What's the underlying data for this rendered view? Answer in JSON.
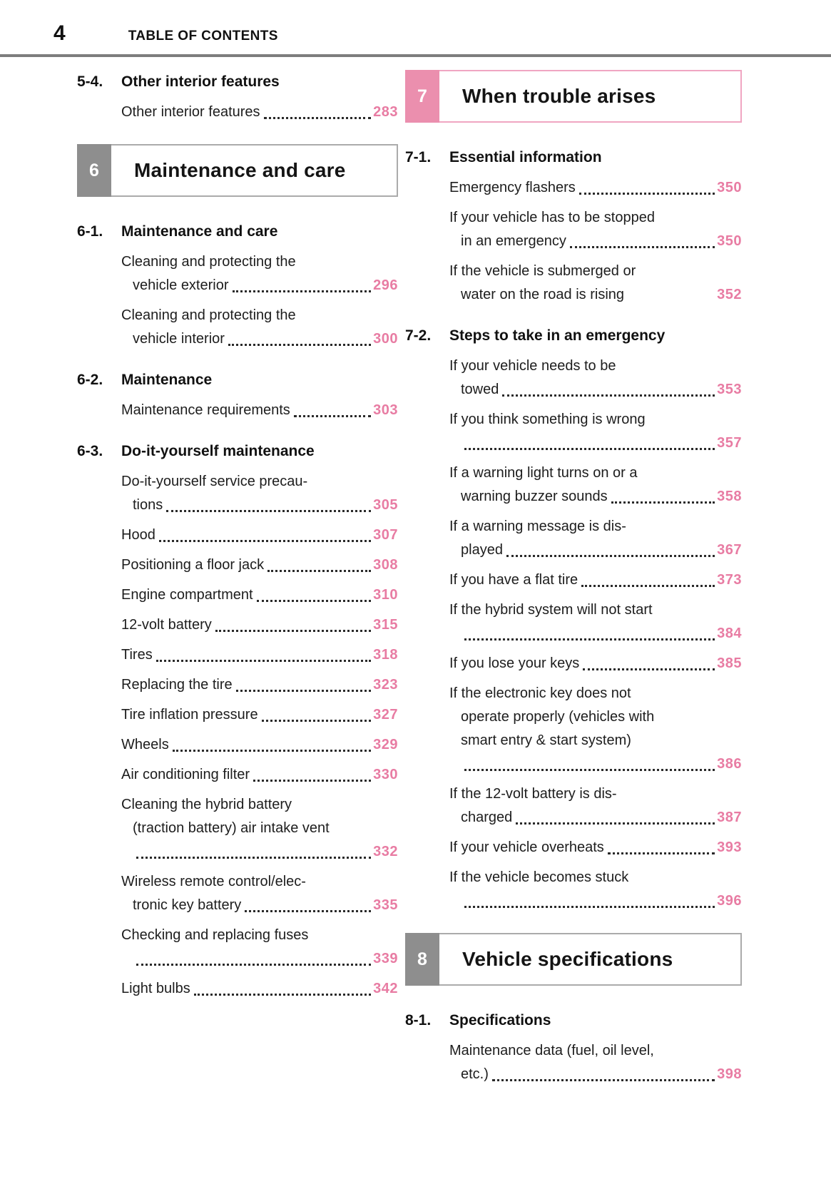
{
  "header": {
    "page_number": "4",
    "title": "TABLE OF CONTENTS"
  },
  "colors": {
    "accent_pink": "#e87ca3",
    "chapter_tab_pink": "#eb8fae",
    "chapter_border_pink": "#f0a6c2",
    "chapter_tab_gray": "#8e8e8e",
    "chapter_border_gray": "#ababab",
    "header_rule_gray": "#7d7d7d",
    "body_text": "#1d1d1d"
  },
  "columns": {
    "left": [
      {
        "type": "section",
        "num": "5-4.",
        "title": "Other interior features",
        "entries": [
          {
            "lines": [
              {
                "t": "Other interior features",
                "leader": true,
                "page": "283"
              }
            ]
          }
        ]
      },
      {
        "type": "chapter",
        "num": "6",
        "title": "Maintenance and care",
        "theme": "gray"
      },
      {
        "type": "section",
        "num": "6-1.",
        "title": "Maintenance and care",
        "entries": [
          {
            "lines": [
              {
                "t": "Cleaning and protecting the"
              },
              {
                "t": "vehicle exterior",
                "cont": true,
                "leader": true,
                "page": "296"
              }
            ]
          },
          {
            "lines": [
              {
                "t": "Cleaning and protecting the"
              },
              {
                "t": "vehicle interior",
                "cont": true,
                "leader": true,
                "page": "300"
              }
            ]
          }
        ]
      },
      {
        "type": "section",
        "num": "6-2.",
        "title": "Maintenance",
        "entries": [
          {
            "lines": [
              {
                "t": "Maintenance requirements",
                "leader": true,
                "page": "303"
              }
            ]
          }
        ]
      },
      {
        "type": "section",
        "num": "6-3.",
        "title": "Do-it-yourself maintenance",
        "entries": [
          {
            "lines": [
              {
                "t": "Do-it-yourself service precau-"
              },
              {
                "t": "tions",
                "cont": true,
                "leader": true,
                "page": "305"
              }
            ]
          },
          {
            "lines": [
              {
                "t": "Hood",
                "leader": true,
                "page": "307"
              }
            ]
          },
          {
            "lines": [
              {
                "t": "Positioning a floor jack",
                "leader": true,
                "page": "308"
              }
            ]
          },
          {
            "lines": [
              {
                "t": "Engine compartment",
                "leader": true,
                "page": "310"
              }
            ]
          },
          {
            "lines": [
              {
                "t": "12-volt battery",
                "leader": true,
                "page": "315"
              }
            ]
          },
          {
            "lines": [
              {
                "t": "Tires",
                "leader": true,
                "page": "318"
              }
            ]
          },
          {
            "lines": [
              {
                "t": "Replacing the tire",
                "leader": true,
                "page": "323"
              }
            ]
          },
          {
            "lines": [
              {
                "t": "Tire inflation pressure",
                "leader": true,
                "page": "327"
              }
            ]
          },
          {
            "lines": [
              {
                "t": "Wheels",
                "leader": true,
                "page": "329"
              }
            ]
          },
          {
            "lines": [
              {
                "t": "Air conditioning filter",
                "leader": true,
                "page": "330"
              }
            ]
          },
          {
            "lines": [
              {
                "t": "Cleaning the hybrid battery"
              },
              {
                "t": "(traction battery) air intake vent",
                "cont": true
              },
              {
                "t": "",
                "cont": true,
                "leader": true,
                "page": "332"
              }
            ]
          },
          {
            "lines": [
              {
                "t": "Wireless remote control/elec-"
              },
              {
                "t": "tronic key battery",
                "cont": true,
                "leader": true,
                "page": "335"
              }
            ]
          },
          {
            "lines": [
              {
                "t": "Checking and replacing fuses"
              },
              {
                "t": "",
                "cont": true,
                "leader": true,
                "page": "339"
              }
            ]
          },
          {
            "lines": [
              {
                "t": "Light bulbs",
                "leader": true,
                "page": "342"
              }
            ]
          }
        ]
      }
    ],
    "right": [
      {
        "type": "chapter",
        "num": "7",
        "title": "When trouble arises",
        "theme": "pink"
      },
      {
        "type": "section",
        "num": "7-1.",
        "title": "Essential information",
        "entries": [
          {
            "lines": [
              {
                "t": "Emergency flashers",
                "leader": true,
                "page": "350"
              }
            ]
          },
          {
            "lines": [
              {
                "t": "If your vehicle has to be stopped"
              },
              {
                "t": "in an emergency",
                "cont": true,
                "leader": true,
                "page": "350"
              }
            ]
          },
          {
            "lines": [
              {
                "t": "If the vehicle is submerged or"
              },
              {
                "t": "water on the road is rising",
                "cont": true,
                "leader": false,
                "page": "352"
              }
            ]
          }
        ]
      },
      {
        "type": "section",
        "num": "7-2.",
        "title": "Steps to take in an emergency",
        "entries": [
          {
            "lines": [
              {
                "t": "If your vehicle needs to be"
              },
              {
                "t": "towed",
                "cont": true,
                "leader": true,
                "page": "353"
              }
            ]
          },
          {
            "lines": [
              {
                "t": "If you think something is wrong"
              },
              {
                "t": "",
                "cont": true,
                "leader": true,
                "page": "357"
              }
            ]
          },
          {
            "lines": [
              {
                "t": "If a warning light turns on or a"
              },
              {
                "t": "warning buzzer sounds",
                "cont": true,
                "leader": true,
                "page": "358"
              }
            ]
          },
          {
            "lines": [
              {
                "t": "If a warning message is dis-"
              },
              {
                "t": "played",
                "cont": true,
                "leader": true,
                "page": "367"
              }
            ]
          },
          {
            "lines": [
              {
                "t": "If you have a flat tire",
                "leader": true,
                "page": "373"
              }
            ]
          },
          {
            "lines": [
              {
                "t": "If the hybrid system will not start"
              },
              {
                "t": "",
                "cont": true,
                "leader": true,
                "page": "384"
              }
            ]
          },
          {
            "lines": [
              {
                "t": "If you lose your keys",
                "leader": true,
                "page": "385"
              }
            ]
          },
          {
            "lines": [
              {
                "t": "If the electronic key does not"
              },
              {
                "t": "operate properly (vehicles with",
                "cont": true
              },
              {
                "t": "smart entry & start system)",
                "cont": true
              },
              {
                "t": "",
                "cont": true,
                "leader": true,
                "page": "386"
              }
            ]
          },
          {
            "lines": [
              {
                "t": "If the 12-volt battery is dis-"
              },
              {
                "t": "charged",
                "cont": true,
                "leader": true,
                "page": "387"
              }
            ]
          },
          {
            "lines": [
              {
                "t": "If your vehicle overheats",
                "leader": true,
                "page": "393"
              }
            ]
          },
          {
            "lines": [
              {
                "t": "If the vehicle becomes stuck"
              },
              {
                "t": "",
                "cont": true,
                "leader": true,
                "page": "396"
              }
            ]
          }
        ]
      },
      {
        "type": "chapter",
        "num": "8",
        "title": "Vehicle specifications",
        "theme": "gray"
      },
      {
        "type": "section",
        "num": "8-1.",
        "title": "Specifications",
        "entries": [
          {
            "lines": [
              {
                "t": "Maintenance data (fuel, oil level,"
              },
              {
                "t": "etc.)",
                "cont": true,
                "leader": true,
                "page": "398"
              }
            ]
          }
        ]
      }
    ]
  }
}
